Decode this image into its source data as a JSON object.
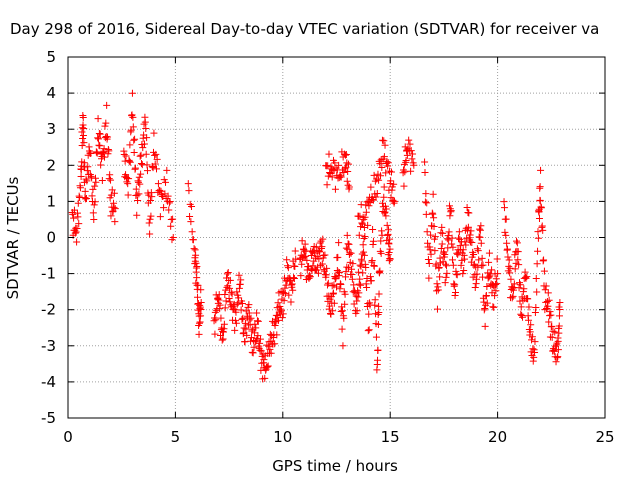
{
  "chart_data": {
    "type": "scatter",
    "title": "Day 298 of 2016, Sidereal Day-to-day VTEC variation (SDTVAR) for receiver va",
    "xlabel": "GPS time / hours",
    "ylabel": "SDTVAR / TECUs",
    "xlim": [
      0,
      25
    ],
    "ylim": [
      -5,
      5
    ],
    "xticks": [
      0,
      5,
      10,
      15,
      20,
      25
    ],
    "yticks": [
      -5,
      -4,
      -3,
      -2,
      -1,
      0,
      1,
      2,
      3,
      4,
      5
    ],
    "grid": true,
    "marker": "+",
    "color": "#ff0000",
    "series": [
      {
        "name": "SDTVAR",
        "segments": [
          [
            [
              0.2,
              0.5
            ],
            [
              0.4,
              0.2
            ],
            [
              0.6,
              1.5
            ],
            [
              0.7,
              3.5
            ],
            [
              0.8,
              1.0
            ],
            [
              1.0,
              2.5
            ],
            [
              1.2,
              0.6
            ],
            [
              1.4,
              3.0
            ],
            [
              1.6,
              2.0
            ],
            [
              1.8,
              3.2
            ],
            [
              2.0,
              1.0
            ],
            [
              2.2,
              0.8
            ]
          ],
          [
            [
              2.6,
              2.2
            ],
            [
              2.8,
              1.5
            ],
            [
              3.0,
              3.6
            ],
            [
              3.2,
              1.0
            ],
            [
              3.4,
              2.0
            ],
            [
              3.6,
              3.3
            ],
            [
              3.8,
              0.2
            ],
            [
              4.0,
              2.6
            ],
            [
              4.3,
              1.0
            ],
            [
              4.6,
              1.4
            ],
            [
              4.9,
              0.0
            ]
          ],
          [
            [
              5.6,
              1.3
            ],
            [
              5.9,
              -0.4
            ],
            [
              6.0,
              -1.2
            ],
            [
              6.1,
              -2.3
            ],
            [
              6.2,
              -1.8
            ]
          ],
          [
            [
              6.8,
              -2.5
            ],
            [
              7.0,
              -1.5
            ],
            [
              7.2,
              -3.0
            ],
            [
              7.4,
              -1.0
            ],
            [
              7.6,
              -1.8
            ],
            [
              7.8,
              -2.2
            ],
            [
              8.0,
              -1.2
            ],
            [
              8.2,
              -2.8
            ],
            [
              8.4,
              -2.0
            ],
            [
              8.6,
              -3.0
            ],
            [
              8.8,
              -2.4
            ],
            [
              9.0,
              -3.4
            ],
            [
              9.2,
              -3.6
            ],
            [
              9.4,
              -3.0
            ],
            [
              9.6,
              -2.6
            ],
            [
              9.8,
              -2.0
            ],
            [
              10.0,
              -1.8
            ],
            [
              10.2,
              -1.0
            ],
            [
              10.4,
              -1.4
            ],
            [
              10.6,
              -0.6
            ]
          ],
          [
            [
              10.8,
              -0.8
            ],
            [
              11.0,
              -0.2
            ],
            [
              11.2,
              -1.2
            ],
            [
              11.4,
              -0.4
            ],
            [
              11.6,
              -0.8
            ],
            [
              11.8,
              -0.2
            ],
            [
              12.0,
              -1.0
            ],
            [
              12.2,
              -2.0
            ],
            [
              12.4,
              -1.4
            ],
            [
              12.6,
              -0.6
            ],
            [
              12.8,
              -2.6
            ],
            [
              13.0,
              -0.2
            ],
            [
              13.2,
              -0.8
            ],
            [
              13.4,
              -2.0
            ],
            [
              13.6,
              -1.0
            ],
            [
              13.8,
              -0.2
            ],
            [
              14.0,
              -2.4
            ],
            [
              14.2,
              0.0
            ],
            [
              14.4,
              -3.6
            ],
            [
              14.5,
              -1.0
            ],
            [
              14.7,
              1.2
            ],
            [
              14.9,
              0.0
            ],
            [
              15.0,
              -0.6
            ]
          ],
          [
            [
              12.0,
              1.8
            ],
            [
              12.3,
              2.0
            ],
            [
              12.6,
              1.6
            ],
            [
              12.9,
              2.3
            ],
            [
              13.1,
              1.4
            ]
          ],
          [
            [
              13.5,
              0.4
            ],
            [
              13.8,
              0.6
            ],
            [
              14.1,
              1.0
            ],
            [
              14.4,
              1.6
            ],
            [
              14.7,
              2.4
            ],
            [
              15.0,
              1.6
            ],
            [
              15.2,
              1.0
            ]
          ],
          [
            [
              15.6,
              1.6
            ],
            [
              15.8,
              2.6
            ],
            [
              16.1,
              2.0
            ]
          ],
          [
            [
              16.6,
              1.9
            ],
            [
              16.8,
              -0.8
            ],
            [
              17.0,
              0.8
            ],
            [
              17.2,
              -1.6
            ],
            [
              17.4,
              0.0
            ],
            [
              17.6,
              -1.0
            ],
            [
              17.8,
              0.9
            ],
            [
              18.0,
              -1.6
            ],
            [
              18.2,
              0.0
            ],
            [
              18.4,
              -0.8
            ],
            [
              18.6,
              0.6
            ],
            [
              18.8,
              -0.4
            ],
            [
              19.0,
              -1.2
            ],
            [
              19.2,
              0.3
            ],
            [
              19.4,
              -2.2
            ],
            [
              19.6,
              -0.8
            ],
            [
              19.8,
              -1.6
            ],
            [
              20.0,
              -1.0
            ]
          ],
          [
            [
              20.3,
              0.8
            ],
            [
              20.5,
              -0.6
            ],
            [
              20.7,
              -1.8
            ],
            [
              20.9,
              0.0
            ],
            [
              21.1,
              -2.2
            ],
            [
              21.3,
              -1.0
            ],
            [
              21.5,
              -2.6
            ],
            [
              21.7,
              -3.4
            ],
            [
              21.9,
              0.4
            ],
            [
              22.0,
              1.4
            ],
            [
              22.2,
              -1.6
            ],
            [
              22.4,
              -2.0
            ],
            [
              22.6,
              -3.0
            ],
            [
              22.8,
              -3.2
            ],
            [
              22.9,
              -1.8
            ]
          ]
        ]
      }
    ]
  }
}
